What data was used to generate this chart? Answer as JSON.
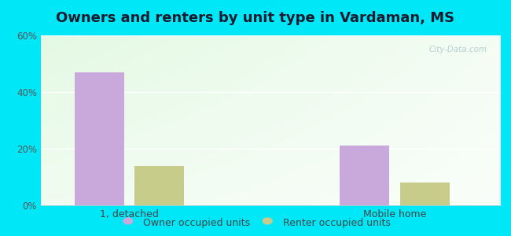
{
  "title": "Owners and renters by unit type in Vardaman, MS",
  "categories": [
    "1, detached",
    "Mobile home"
  ],
  "owner_values": [
    47,
    21
  ],
  "renter_values": [
    14,
    8
  ],
  "owner_color": "#c9a8dc",
  "renter_color": "#c8cc8a",
  "ylim": [
    0,
    60
  ],
  "yticks": [
    0,
    20,
    40,
    60
  ],
  "ytick_labels": [
    "0%",
    "20%",
    "40%",
    "60%"
  ],
  "legend_owner": "Owner occupied units",
  "legend_renter": "Renter occupied units",
  "bg_outer": "#00e8f8",
  "bg_gradient_topleft": "#c8e8c0",
  "bg_gradient_right": "#eef8ee",
  "bg_gradient_bottom": "#f0f8f0",
  "watermark": "City-Data.com",
  "title_fontsize": 13,
  "bar_width": 0.28,
  "x_positions": [
    0.5,
    2.0
  ],
  "xlim": [
    0.0,
    2.6
  ]
}
